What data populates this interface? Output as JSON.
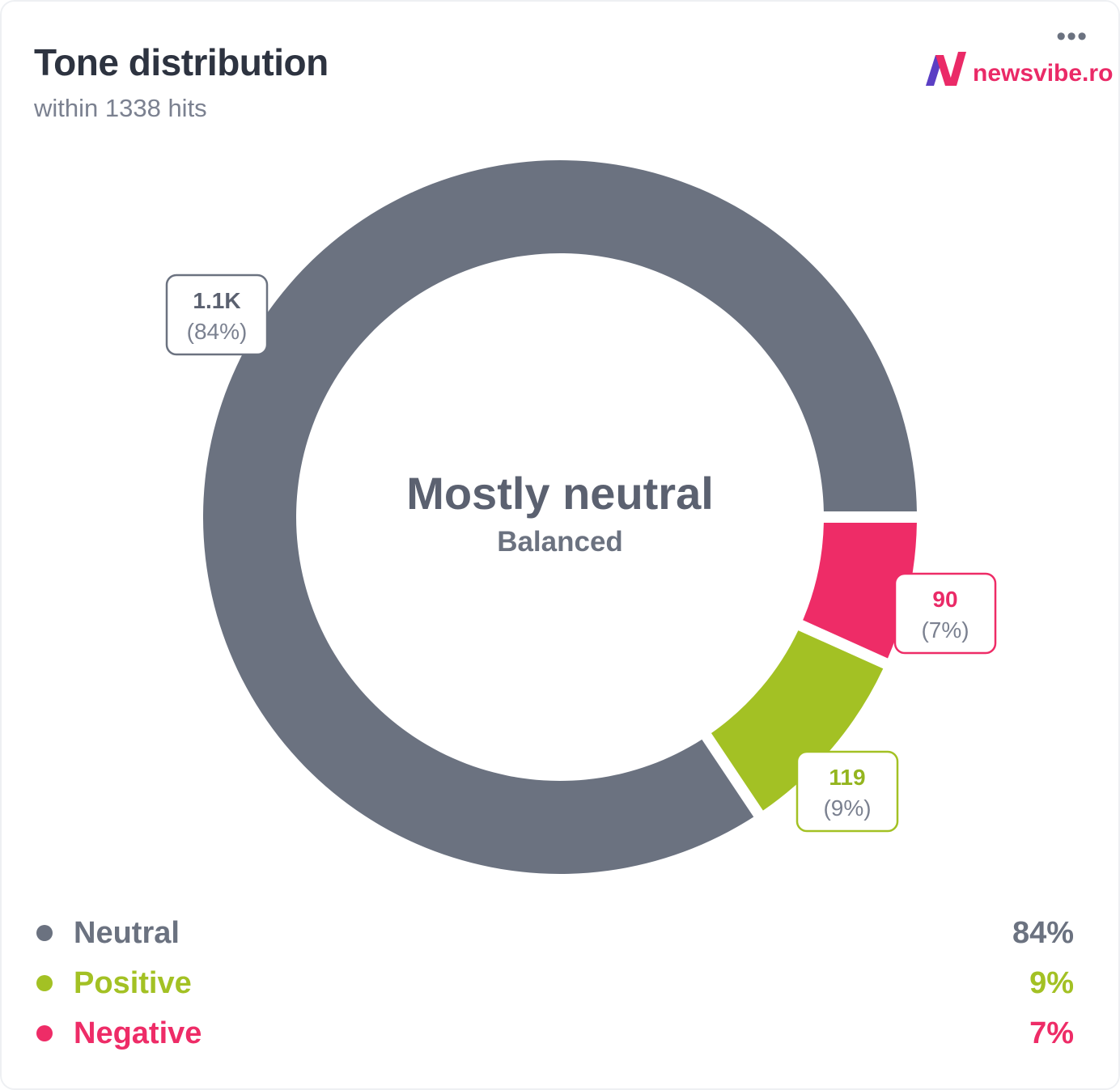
{
  "card": {
    "title": "Tone distribution",
    "subtitle": "within 1338 hits",
    "menu_icon": "more-horizontal-icon",
    "menu_label": "•••",
    "brand": {
      "logo_icon": "newsvibe-n-logo",
      "text": "newsvibe.ro",
      "color": "#ea2a67"
    }
  },
  "chart_data": {
    "type": "pie",
    "variant": "donut",
    "center_title": "Mostly neutral",
    "center_subtitle": "Balanced",
    "total": 1338,
    "series": [
      {
        "name": "Neutral",
        "value": 1129,
        "label": "1.1K",
        "percent_label": "(84%)",
        "legend_percent": "84%",
        "color": "#6b7280",
        "label_text_color": "#5b6170",
        "label_border": "#6b7280"
      },
      {
        "name": "Negative",
        "value": 90,
        "label": "90",
        "percent_label": "(7%)",
        "legend_percent": "7%",
        "color": "#ee2c67",
        "label_text_color": "#ea2a67",
        "label_border": "#ee2c67"
      },
      {
        "name": "Positive",
        "value": 119,
        "label": "119",
        "percent_label": "(9%)",
        "legend_percent": "9%",
        "color": "#a3c124",
        "label_text_color": "#94b51f",
        "label_border": "#a3c124"
      }
    ]
  },
  "legend": [
    {
      "name": "Neutral",
      "percent": "84%",
      "color": "#6b7280"
    },
    {
      "name": "Positive",
      "percent": "9%",
      "color": "#a3c124"
    },
    {
      "name": "Negative",
      "percent": "7%",
      "color": "#ee2c67"
    }
  ]
}
